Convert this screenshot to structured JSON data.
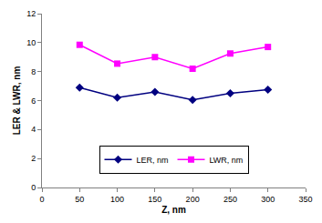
{
  "chart_data": {
    "type": "line",
    "x_label": "Z, nm",
    "y_label": "LER & LWR, nm",
    "x": [
      50,
      100,
      150,
      200,
      250,
      300
    ],
    "series": [
      {
        "name": "LER, nm",
        "color": "#000080",
        "marker": "diamond",
        "values": [
          6.9,
          6.2,
          6.6,
          6.05,
          6.5,
          6.75
        ]
      },
      {
        "name": "LWR, nm",
        "color": "#ff00ff",
        "marker": "square",
        "values": [
          9.85,
          8.55,
          9.0,
          8.2,
          9.25,
          9.7
        ]
      }
    ],
    "xlim": [
      0,
      350
    ],
    "xticks": [
      0,
      50,
      100,
      150,
      200,
      250,
      300,
      350
    ],
    "ylim": [
      0,
      12
    ],
    "yticks": [
      0,
      2,
      4,
      6,
      8,
      10,
      12
    ],
    "grid": false,
    "legend": "bottom"
  }
}
